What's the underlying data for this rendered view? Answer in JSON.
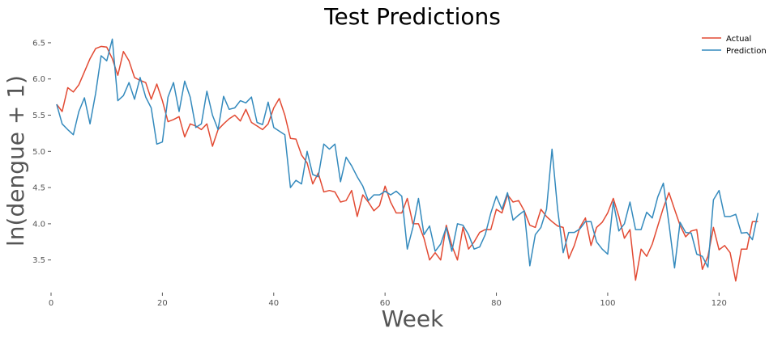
{
  "chart_data": {
    "type": "line",
    "title": "Test Predictions",
    "xlabel": "Week",
    "ylabel": "ln(dengue + 1)",
    "xlim": [
      0,
      130
    ],
    "ylim": [
      3.05,
      6.7
    ],
    "xticks": [
      0,
      20,
      40,
      60,
      80,
      100,
      120
    ],
    "yticks": [
      3.5,
      4.0,
      4.5,
      5.0,
      5.5,
      6.0,
      6.5
    ],
    "ytick_labels": [
      "3.5",
      "4.0",
      "4.5",
      "5.0",
      "5.5",
      "6.0",
      "6.5"
    ],
    "grid": false,
    "legend_position": "top-right",
    "series": [
      {
        "name": "Actual",
        "color": "#e24a33",
        "x": [
          1,
          2,
          3,
          4,
          5,
          6,
          7,
          8,
          9,
          10,
          11,
          12,
          13,
          14,
          15,
          16,
          17,
          18,
          19,
          20,
          21,
          22,
          23,
          24,
          25,
          26,
          27,
          28,
          29,
          30,
          31,
          32,
          33,
          34,
          35,
          36,
          37,
          38,
          39,
          40,
          41,
          42,
          43,
          44,
          45,
          46,
          47,
          48,
          49,
          50,
          51,
          52,
          53,
          54,
          55,
          56,
          57,
          58,
          59,
          60,
          61,
          62,
          63,
          64,
          65,
          66,
          67,
          68,
          69,
          70,
          71,
          72,
          73,
          74,
          75,
          76,
          77,
          78,
          79,
          80,
          81,
          82,
          83,
          84,
          85,
          86,
          87,
          88,
          89,
          90,
          91,
          92,
          93,
          94,
          95,
          96,
          97,
          98,
          99,
          100,
          101,
          102,
          103,
          104,
          105,
          106,
          107,
          108,
          109,
          110,
          111,
          112,
          113,
          114,
          115,
          116,
          117,
          118,
          119,
          120,
          121,
          122,
          123,
          124,
          125,
          126,
          127
        ],
        "values": [
          5.65,
          5.55,
          5.88,
          5.82,
          5.92,
          6.1,
          6.28,
          6.42,
          6.45,
          6.44,
          6.28,
          6.05,
          6.38,
          6.25,
          6.02,
          5.98,
          5.95,
          5.72,
          5.93,
          5.7,
          5.41,
          5.44,
          5.48,
          5.2,
          5.38,
          5.35,
          5.3,
          5.38,
          5.07,
          5.3,
          5.38,
          5.45,
          5.5,
          5.42,
          5.58,
          5.4,
          5.35,
          5.3,
          5.38,
          5.6,
          5.73,
          5.5,
          5.18,
          5.17,
          4.95,
          4.84,
          4.55,
          4.7,
          4.44,
          4.46,
          4.44,
          4.3,
          4.32,
          4.46,
          4.1,
          4.4,
          4.3,
          4.18,
          4.25,
          4.52,
          4.3,
          4.15,
          4.15,
          4.35,
          4.0,
          4.0,
          3.8,
          3.5,
          3.6,
          3.5,
          3.98,
          3.7,
          3.5,
          3.95,
          3.65,
          3.75,
          3.88,
          3.92,
          3.92,
          4.2,
          4.15,
          4.4,
          4.3,
          4.32,
          4.18,
          3.98,
          3.95,
          4.2,
          4.1,
          4.03,
          3.97,
          3.95,
          3.52,
          3.7,
          3.95,
          4.08,
          3.7,
          3.95,
          4.02,
          4.15,
          4.35,
          4.1,
          3.8,
          3.92,
          3.22,
          3.65,
          3.55,
          3.72,
          3.97,
          4.22,
          4.43,
          4.2,
          3.98,
          3.82,
          3.9,
          3.92,
          3.37,
          3.55,
          3.95,
          3.64,
          3.7,
          3.6,
          3.21,
          3.65,
          3.65,
          4.03,
          4.03
        ]
      },
      {
        "name": "Prediction",
        "color": "#348abd",
        "x": [
          1,
          2,
          3,
          4,
          5,
          6,
          7,
          8,
          9,
          10,
          11,
          12,
          13,
          14,
          15,
          16,
          17,
          18,
          19,
          20,
          21,
          22,
          23,
          24,
          25,
          26,
          27,
          28,
          29,
          30,
          31,
          32,
          33,
          34,
          35,
          36,
          37,
          38,
          39,
          40,
          41,
          42,
          43,
          44,
          45,
          46,
          47,
          48,
          49,
          50,
          51,
          52,
          53,
          54,
          55,
          56,
          57,
          58,
          59,
          60,
          61,
          62,
          63,
          64,
          65,
          66,
          67,
          68,
          69,
          70,
          71,
          72,
          73,
          74,
          75,
          76,
          77,
          78,
          79,
          80,
          81,
          82,
          83,
          84,
          85,
          86,
          87,
          88,
          89,
          90,
          91,
          92,
          93,
          94,
          95,
          96,
          97,
          98,
          99,
          100,
          101,
          102,
          103,
          104,
          105,
          106,
          107,
          108,
          109,
          110,
          111,
          112,
          113,
          114,
          115,
          116,
          117,
          118,
          119,
          120,
          121,
          122,
          123,
          124,
          125,
          126,
          127
        ],
        "values": [
          5.65,
          5.38,
          5.3,
          5.23,
          5.55,
          5.74,
          5.38,
          5.8,
          6.32,
          6.25,
          6.55,
          5.7,
          5.77,
          5.95,
          5.72,
          6.02,
          5.75,
          5.6,
          5.1,
          5.13,
          5.75,
          5.95,
          5.55,
          5.97,
          5.75,
          5.33,
          5.38,
          5.83,
          5.5,
          5.3,
          5.76,
          5.58,
          5.6,
          5.7,
          5.67,
          5.75,
          5.4,
          5.37,
          5.68,
          5.33,
          5.28,
          5.23,
          4.5,
          4.6,
          4.55,
          5.0,
          4.68,
          4.65,
          5.1,
          5.03,
          5.1,
          4.58,
          4.92,
          4.8,
          4.65,
          4.52,
          4.32,
          4.4,
          4.4,
          4.45,
          4.4,
          4.45,
          4.38,
          3.65,
          3.95,
          4.35,
          3.85,
          3.97,
          3.62,
          3.72,
          3.95,
          3.62,
          4.0,
          3.98,
          3.85,
          3.65,
          3.68,
          3.85,
          4.15,
          4.38,
          4.2,
          4.43,
          4.05,
          4.12,
          4.18,
          3.42,
          3.85,
          3.95,
          4.2,
          5.03,
          4.2,
          3.6,
          3.88,
          3.88,
          3.93,
          4.03,
          4.03,
          3.75,
          3.65,
          3.58,
          4.3,
          3.9,
          4.0,
          4.3,
          3.92,
          3.92,
          4.16,
          4.08,
          4.37,
          4.56,
          4.0,
          3.39,
          4.02,
          3.88,
          3.87,
          3.58,
          3.55,
          3.4,
          4.33,
          4.46,
          4.1,
          4.1,
          4.13,
          3.87,
          3.88,
          3.78,
          4.15
        ]
      }
    ]
  }
}
